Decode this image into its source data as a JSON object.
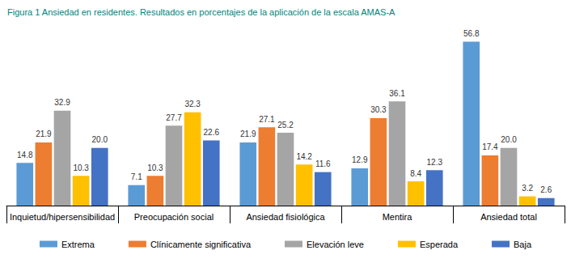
{
  "chart_data": {
    "type": "bar",
    "title": "Figura 1 Ansiedad en residentes. Resultados en porcentajes de la aplicación de la escala AMAS-A",
    "categories": [
      "Inquietud/hipersensibilidad",
      "Preocupación social",
      "Ansiedad fisiológica",
      "Mentira",
      "Ansiedad total"
    ],
    "series": [
      {
        "name": "Extrema",
        "color": "#5b9bd5",
        "values": [
          14.8,
          7.1,
          21.9,
          12.9,
          56.8
        ],
        "value_labels": [
          "14.8",
          "7.1",
          "21.9",
          "12.9",
          "56.8"
        ]
      },
      {
        "name": "Clínicamente significativa",
        "color": "#ed7d31",
        "values": [
          21.9,
          10.3,
          27.1,
          30.3,
          17.4
        ],
        "value_labels": [
          "21.9",
          "10.3",
          "27.1",
          "30.3",
          "17.4"
        ]
      },
      {
        "name": "Elevación leve",
        "color": "#a5a5a5",
        "values": [
          32.9,
          27.7,
          25.2,
          36.1,
          20.0
        ],
        "value_labels": [
          "32.9",
          "27.7",
          "25.2",
          "36.1",
          "20.0"
        ]
      },
      {
        "name": "Esperada",
        "color": "#ffc000",
        "values": [
          10.3,
          32.3,
          14.2,
          8.4,
          3.2
        ],
        "value_labels": [
          "10.3",
          "32.3",
          "14.2",
          "8.4",
          "3.2"
        ]
      },
      {
        "name": "Baja",
        "color": "#4472c4",
        "values": [
          20.0,
          22.6,
          11.6,
          12.3,
          2.6
        ],
        "value_labels": [
          "20.0",
          "22.6",
          "11.6",
          "12.3",
          "2.6"
        ]
      }
    ],
    "ylim": [
      0,
      60
    ],
    "grid": false,
    "legend": "bottom",
    "data_labels": true,
    "tick_labels": "x"
  }
}
